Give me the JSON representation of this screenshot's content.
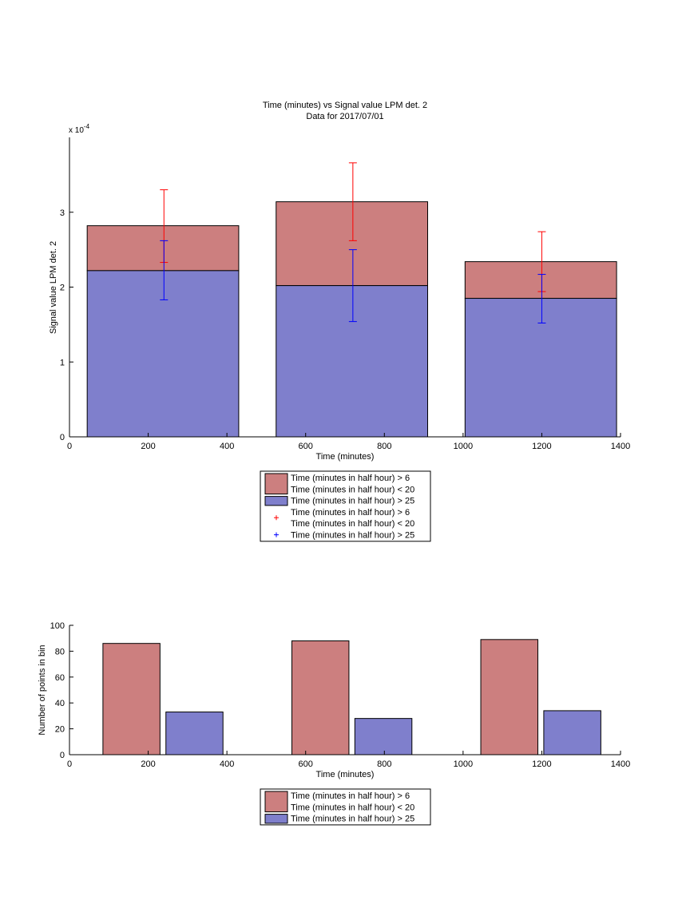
{
  "chart_data": [
    {
      "type": "bar",
      "stacked": true,
      "title": "Time (minutes) vs Signal value LPM det. 2",
      "subtitle": "Data for 2017/07/01",
      "xlabel": "Time (minutes)",
      "ylabel": "Signal value LPM det. 2",
      "y_exponent_label": "x 10",
      "y_exponent_power": "-4",
      "xlim": [
        0,
        1400
      ],
      "ylim": [
        0,
        4.0
      ],
      "x_ticks": [
        0,
        200,
        400,
        600,
        800,
        1000,
        1200,
        1400
      ],
      "y_ticks": [
        0,
        1,
        2,
        3
      ],
      "grid": false,
      "legend_position": "below",
      "bins": [
        {
          "x0": 45,
          "x1": 430,
          "center": 240
        },
        {
          "x0": 525,
          "x1": 910,
          "center": 720
        },
        {
          "x0": 1005,
          "x1": 1390,
          "center": 1200
        }
      ],
      "series": [
        {
          "name": "Time (minutes in half hour) > 6\nTime (minutes in half hour) < 20",
          "kind": "bar-top",
          "color": "#cc7f7f",
          "values": [
            2.82,
            3.14,
            2.34
          ]
        },
        {
          "name": "Time (minutes in half hour) > 25",
          "kind": "bar-bottom",
          "color": "#7f7fcc",
          "values": [
            2.22,
            2.02,
            1.85
          ]
        },
        {
          "name": "Time (minutes in half hour) > 6\nTime (minutes in half hour) < 20",
          "kind": "errorbar",
          "color": "#ff0000",
          "means": [
            2.82,
            3.14,
            2.34
          ],
          "low": [
            2.33,
            2.62,
            1.94
          ],
          "high": [
            3.3,
            3.66,
            2.74
          ]
        },
        {
          "name": "Time (minutes in half hour) > 25",
          "kind": "errorbar",
          "color": "#0000ff",
          "means": [
            2.22,
            2.02,
            1.85
          ],
          "low": [
            1.83,
            1.54,
            1.52
          ],
          "high": [
            2.62,
            2.5,
            2.17
          ]
        }
      ],
      "legend": [
        {
          "label": "Time (minutes in half hour) > 6",
          "label2": "Time (minutes in half hour) < 20",
          "marker": "patch",
          "color": "#cc7f7f"
        },
        {
          "label": "Time (minutes in half hour) > 25",
          "marker": "patch",
          "color": "#7f7fcc"
        },
        {
          "label": "Time (minutes in half hour) > 6",
          "label2": "Time (minutes in half hour) < 20",
          "marker": "+",
          "color": "#ff0000"
        },
        {
          "label": "Time (minutes in half hour) > 25",
          "marker": "+",
          "color": "#0000ff"
        }
      ]
    },
    {
      "type": "bar",
      "grouped": true,
      "xlabel": "Time (minutes)",
      "ylabel": "Number of points in bin",
      "xlim": [
        0,
        1400
      ],
      "ylim": [
        0,
        100
      ],
      "x_ticks": [
        0,
        200,
        400,
        600,
        800,
        1000,
        1200,
        1400
      ],
      "y_ticks": [
        0,
        20,
        40,
        60,
        80,
        100
      ],
      "grid": false,
      "legend_position": "below",
      "series": [
        {
          "name": "Time (minutes in half hour) > 6\nTime (minutes in half hour) < 20",
          "color": "#cc7f7f",
          "bars": [
            {
              "x0": 85,
              "x1": 230,
              "value": 86
            },
            {
              "x0": 565,
              "x1": 710,
              "value": 88
            },
            {
              "x0": 1045,
              "x1": 1190,
              "value": 89
            }
          ]
        },
        {
          "name": "Time (minutes in half hour) > 25",
          "color": "#7f7fcc",
          "bars": [
            {
              "x0": 245,
              "x1": 390,
              "value": 33
            },
            {
              "x0": 725,
              "x1": 870,
              "value": 28
            },
            {
              "x0": 1205,
              "x1": 1350,
              "value": 34
            }
          ]
        }
      ],
      "legend": [
        {
          "label": "Time (minutes in half hour) > 6",
          "label2": "Time (minutes in half hour) < 20",
          "marker": "patch",
          "color": "#cc7f7f"
        },
        {
          "label": "Time (minutes in half hour) > 25",
          "marker": "patch",
          "color": "#7f7fcc"
        }
      ]
    }
  ]
}
